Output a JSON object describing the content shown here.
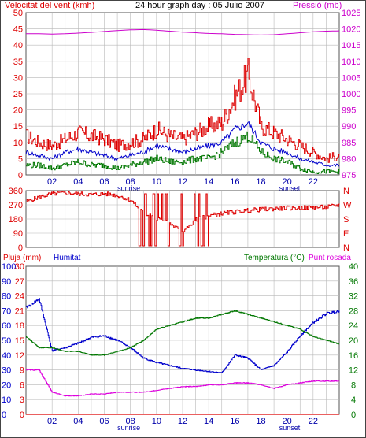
{
  "header": {
    "left_title": "Velocitat del vent (kmh)",
    "center_title": "24 hour graph day : 05 Julio 2007",
    "right_title": "Pressió (mb)"
  },
  "colors": {
    "wind": "#dd0000",
    "wind_avg": "#0000cc",
    "gust_low": "#007700",
    "pressure": "#cc00cc",
    "direction": "#dd0000",
    "rain": "#dd0000",
    "humidity": "#0000cc",
    "temperature": "#007700",
    "dewpoint": "#dd00dd",
    "grid": "#b8b8b8",
    "axis_left": "#dd0000",
    "axis_right_pressure": "#cc00cc",
    "axis_right_temp": "#007700",
    "axis_humidity": "#0000cc"
  },
  "x_axis": {
    "ticks": [
      "02",
      "04",
      "06",
      "08",
      "10",
      "12",
      "14",
      "16",
      "18",
      "20",
      "22"
    ],
    "sunrise_label": "sunrise",
    "sunset_label": "sunset",
    "range": [
      0,
      24
    ]
  },
  "chart_data": [
    {
      "type": "line",
      "panel": "wind",
      "ylabel": "Velocitat del vent (kmh)",
      "y2label": "Pressió (mb)",
      "ylim": [
        0,
        50
      ],
      "y2lim": [
        975,
        1025
      ],
      "y_ticks": [
        "0",
        "5",
        "10",
        "15",
        "20",
        "25",
        "30",
        "35",
        "40",
        "45",
        "50"
      ],
      "y2_ticks": [
        "975",
        "980",
        "985",
        "990",
        "995",
        "1000",
        "1005",
        "1010",
        "1015",
        "1020",
        "1025"
      ],
      "x": [
        0,
        1,
        2,
        3,
        4,
        5,
        6,
        7,
        8,
        9,
        10,
        11,
        12,
        13,
        14,
        15,
        16,
        17,
        18,
        19,
        20,
        21,
        22,
        23,
        24
      ],
      "series": [
        {
          "values": [
            12,
            10,
            9,
            11,
            13,
            12,
            11,
            9,
            10,
            11,
            14,
            12,
            11,
            13,
            15,
            16,
            24,
            31,
            15,
            13,
            11,
            9,
            7,
            5,
            6
          ]
        },
        {
          "values": [
            7,
            6,
            5,
            7,
            8,
            7,
            6,
            5,
            6,
            7,
            9,
            8,
            7,
            8,
            9,
            10,
            14,
            16,
            10,
            8,
            7,
            5,
            4,
            3,
            3
          ]
        },
        {
          "values": [
            3,
            3,
            2,
            3,
            4,
            3,
            3,
            2,
            3,
            4,
            5,
            4,
            4,
            5,
            5,
            7,
            10,
            12,
            7,
            5,
            4,
            2,
            1,
            1,
            1
          ]
        },
        {
          "values": [
            1018.5,
            1018.5,
            1018.4,
            1018.5,
            1018.7,
            1018.9,
            1019.2,
            1019.5,
            1019.7,
            1019.8,
            1019.6,
            1019.3,
            1019.0,
            1018.8,
            1018.6,
            1018.5,
            1018.3,
            1018.2,
            1018.1,
            1018.2,
            1018.5,
            1018.8,
            1019.1,
            1019.3,
            1019.4
          ]
        }
      ]
    },
    {
      "type": "line",
      "panel": "direction",
      "ylim": [
        0,
        360
      ],
      "y_ticks": [
        "0",
        "90",
        "180",
        "270",
        "360"
      ],
      "y2_ticks": [
        "N",
        "W",
        "S",
        "E",
        "N"
      ],
      "x": [
        0,
        1,
        2,
        3,
        4,
        5,
        6,
        7,
        8,
        9,
        10,
        11,
        12,
        13,
        14,
        15,
        16,
        17,
        18,
        19,
        20,
        21,
        22,
        23,
        24
      ],
      "series": [
        {
          "values": [
            290,
            320,
            340,
            345,
            340,
            335,
            340,
            330,
            300,
            220,
            180,
            150,
            100,
            175,
            200,
            215,
            225,
            235,
            240,
            245,
            250,
            250,
            255,
            255,
            270
          ]
        }
      ]
    },
    {
      "type": "line",
      "panel": "temperature",
      "y_left_rain_label": "Pluja (mm)",
      "y_left_humidity_label": "Humitat",
      "y_right_label": "Temperatura (°C)",
      "y_right2_label": "Punt rosada",
      "rain_ylim": [
        0,
        30
      ],
      "humidity_ylim": [
        0,
        100
      ],
      "temp_ylim": [
        0,
        40
      ],
      "rain_ticks": [
        "0",
        "3",
        "6",
        "9",
        "12",
        "15",
        "18",
        "21",
        "24",
        "27",
        "30"
      ],
      "humidity_ticks": [
        "0",
        "10",
        "20",
        "30",
        "40",
        "50",
        "60",
        "70",
        "80",
        "90",
        "100"
      ],
      "temp_ticks": [
        "0",
        "4",
        "8",
        "12",
        "16",
        "20",
        "24",
        "28",
        "32",
        "36",
        "40"
      ],
      "x": [
        0,
        1,
        2,
        3,
        4,
        5,
        6,
        7,
        8,
        9,
        10,
        11,
        12,
        13,
        14,
        15,
        16,
        17,
        18,
        19,
        20,
        21,
        22,
        23,
        24
      ],
      "series": [
        {
          "values": [
            0,
            0,
            0,
            0,
            0,
            0,
            0,
            0,
            0,
            0,
            0,
            0,
            0,
            0,
            0,
            0,
            0,
            0,
            0,
            0,
            0,
            0,
            0,
            0,
            0
          ]
        },
        {
          "values": [
            72,
            78,
            43,
            45,
            48,
            52,
            53,
            50,
            45,
            38,
            35,
            33,
            31,
            30,
            29,
            28,
            40,
            38,
            30,
            33,
            42,
            53,
            62,
            68,
            70
          ]
        },
        {
          "values": [
            21,
            18,
            18,
            17,
            17,
            16,
            16,
            17,
            18,
            20,
            23,
            24,
            25,
            26,
            26,
            27,
            28,
            27,
            26,
            25,
            24,
            23,
            21,
            20,
            19
          ]
        },
        {
          "values": [
            12,
            12,
            6,
            5,
            5,
            5.5,
            5.5,
            6,
            6,
            6,
            6.5,
            7,
            7.5,
            7.5,
            8,
            8,
            8.5,
            8.5,
            8,
            7,
            8,
            8.5,
            9,
            9,
            9
          ]
        }
      ]
    }
  ]
}
